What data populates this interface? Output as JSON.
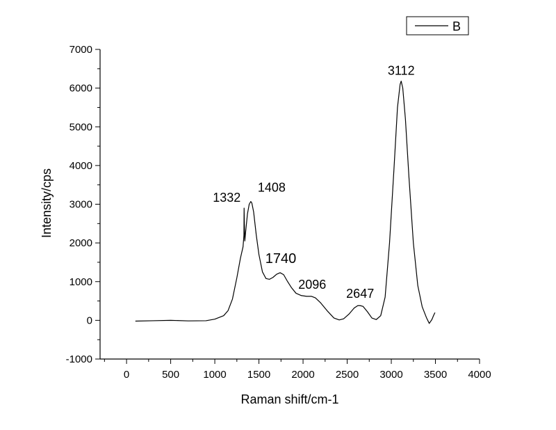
{
  "chart_data": {
    "type": "line",
    "xlabel": "Raman shift/cm-1",
    "ylabel": "Intensity/cps",
    "xlim": [
      -300,
      4000
    ],
    "ylim": [
      -1000,
      7000
    ],
    "x_ticks": [
      0,
      500,
      1000,
      1500,
      2000,
      2500,
      3000,
      3500,
      4000
    ],
    "y_ticks": [
      -1000,
      0,
      1000,
      2000,
      3000,
      4000,
      5000,
      6000,
      7000
    ],
    "x_tick_labels": [
      "0",
      "500",
      "1000",
      "1500",
      "2000",
      "2500",
      "3000",
      "3500",
      "4000"
    ],
    "y_tick_labels": [
      "-1000",
      "0",
      "1000",
      "2000",
      "3000",
      "4000",
      "5000",
      "6000",
      "7000"
    ],
    "grid": false,
    "legend_position": "top-right",
    "series": [
      {
        "name": "B",
        "color": "#000000",
        "points": [
          [
            100,
            -20
          ],
          [
            300,
            -10
          ],
          [
            500,
            0
          ],
          [
            700,
            -15
          ],
          [
            900,
            -10
          ],
          [
            1000,
            30
          ],
          [
            1100,
            120
          ],
          [
            1150,
            250
          ],
          [
            1200,
            550
          ],
          [
            1250,
            1100
          ],
          [
            1290,
            1600
          ],
          [
            1320,
            1900
          ],
          [
            1330,
            2200
          ],
          [
            1332,
            2900
          ],
          [
            1335,
            2500
          ],
          [
            1340,
            2050
          ],
          [
            1350,
            2300
          ],
          [
            1370,
            2750
          ],
          [
            1390,
            3000
          ],
          [
            1408,
            3070
          ],
          [
            1420,
            3030
          ],
          [
            1440,
            2800
          ],
          [
            1470,
            2200
          ],
          [
            1500,
            1700
          ],
          [
            1540,
            1250
          ],
          [
            1580,
            1080
          ],
          [
            1620,
            1060
          ],
          [
            1660,
            1110
          ],
          [
            1700,
            1190
          ],
          [
            1740,
            1230
          ],
          [
            1780,
            1180
          ],
          [
            1820,
            1020
          ],
          [
            1870,
            840
          ],
          [
            1920,
            700
          ],
          [
            1980,
            640
          ],
          [
            2040,
            620
          ],
          [
            2096,
            620
          ],
          [
            2140,
            580
          ],
          [
            2200,
            450
          ],
          [
            2280,
            230
          ],
          [
            2350,
            60
          ],
          [
            2410,
            10
          ],
          [
            2460,
            40
          ],
          [
            2520,
            160
          ],
          [
            2580,
            320
          ],
          [
            2620,
            380
          ],
          [
            2647,
            380
          ],
          [
            2680,
            360
          ],
          [
            2730,
            220
          ],
          [
            2780,
            60
          ],
          [
            2830,
            20
          ],
          [
            2880,
            120
          ],
          [
            2930,
            600
          ],
          [
            2980,
            2000
          ],
          [
            3030,
            3900
          ],
          [
            3070,
            5500
          ],
          [
            3100,
            6100
          ],
          [
            3112,
            6180
          ],
          [
            3130,
            6000
          ],
          [
            3160,
            5200
          ],
          [
            3200,
            3700
          ],
          [
            3250,
            2000
          ],
          [
            3300,
            900
          ],
          [
            3350,
            350
          ],
          [
            3400,
            60
          ],
          [
            3430,
            -80
          ],
          [
            3460,
            20
          ],
          [
            3480,
            130
          ],
          [
            3495,
            200
          ]
        ]
      }
    ],
    "annotations": [
      {
        "text": "1332",
        "x": 1332,
        "y": 2900
      },
      {
        "text": "1408",
        "x": 1408,
        "y": 3070
      },
      {
        "text": "1740",
        "x": 1740,
        "y": 1230
      },
      {
        "text": "2096",
        "x": 2096,
        "y": 620
      },
      {
        "text": "2647",
        "x": 2647,
        "y": 380
      },
      {
        "text": "3112",
        "x": 3112,
        "y": 6180
      }
    ]
  }
}
